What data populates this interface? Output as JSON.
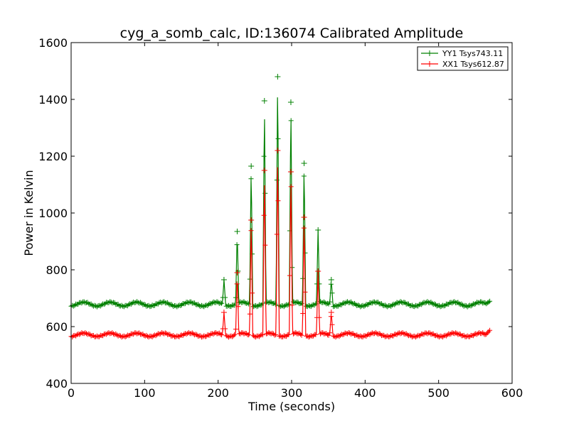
{
  "chart_data": {
    "type": "line",
    "title": "cyg_a_somb_calc, ID:136074 Calibrated Amplitude",
    "xlabel": "Time (seconds)",
    "ylabel": "Power in Kelvin",
    "xlim": [
      0,
      600
    ],
    "ylim": [
      400,
      1600
    ],
    "xticks": [
      "0",
      "100",
      "200",
      "300",
      "400",
      "500",
      "600"
    ],
    "yticks": [
      "400",
      "600",
      "800",
      "1000",
      "1200",
      "1400",
      "1600"
    ],
    "grid": false,
    "legend_position": "top-right",
    "marker": "plus",
    "x_range_data": [
      0,
      570
    ],
    "series": [
      {
        "name": "YY1 Tsys743.11",
        "color": "#008000",
        "baseline": 679,
        "ripple_amplitude": 7,
        "ripple_period_s": 36,
        "end_value": 690,
        "peaks": [
          {
            "x": 208,
            "y": 765
          },
          {
            "x": 226,
            "y": 935
          },
          {
            "x": 245,
            "y": 1165
          },
          {
            "x": 263,
            "y": 1395
          },
          {
            "x": 281,
            "y": 1480
          },
          {
            "x": 299,
            "y": 1390
          },
          {
            "x": 317,
            "y": 1175
          },
          {
            "x": 336,
            "y": 940
          },
          {
            "x": 354,
            "y": 765
          }
        ]
      },
      {
        "name": "XX1 Tsys612.87",
        "color": "#ff0000",
        "baseline": 571,
        "ripple_amplitude": 6,
        "ripple_period_s": 36,
        "end_value": 588,
        "peaks": [
          {
            "x": 208,
            "y": 650
          },
          {
            "x": 226,
            "y": 790
          },
          {
            "x": 245,
            "y": 975
          },
          {
            "x": 263,
            "y": 1150
          },
          {
            "x": 281,
            "y": 1220
          },
          {
            "x": 299,
            "y": 1145
          },
          {
            "x": 317,
            "y": 985
          },
          {
            "x": 336,
            "y": 795
          },
          {
            "x": 354,
            "y": 650
          }
        ]
      }
    ]
  }
}
